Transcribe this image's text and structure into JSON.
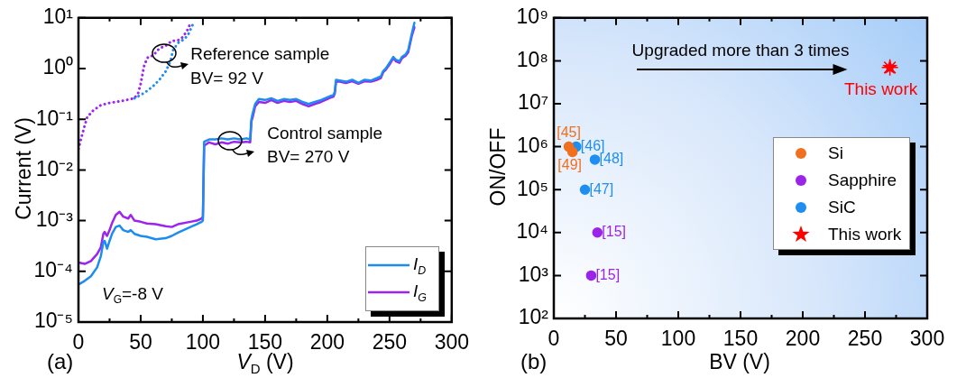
{
  "chart_data": [
    {
      "type": "line",
      "xlabel": "V$_{D}$ (V)",
      "ylabel": "Current (V)",
      "log": "y",
      "grid": false,
      "legend": "bottom right",
      "xlim": [
        0,
        300
      ],
      "ylim": [
        1e-05,
        10
      ],
      "xticks": [
        0,
        {
          "value": 25,
          "label": null
        },
        50,
        {
          "value": 75,
          "label": null
        },
        100,
        {
          "value": 125,
          "label": null
        },
        150,
        {
          "value": 175,
          "label": null
        },
        200,
        {
          "value": 225,
          "label": null
        },
        250,
        {
          "value": 275,
          "label": null
        },
        300
      ],
      "yticks": [
        {
          "value": 1e-05,
          "label": "10⁻⁵"
        },
        {
          "value": 0.0001,
          "label": "10⁻⁴"
        },
        {
          "value": 0.001,
          "label": "10⁻³"
        },
        {
          "value": 0.01,
          "label": "10⁻²"
        },
        {
          "value": 0.1,
          "label": "10⁻¹"
        },
        {
          "value": 1,
          "label": "10⁰"
        },
        {
          "value": 10,
          "label": "10¹"
        }
      ],
      "series": [
        {
          "name": "I$_{D}$",
          "color": "#1c8cf0",
          "x": [
            0,
            5,
            10,
            15,
            18,
            20,
            21,
            23,
            25,
            27,
            30,
            33,
            36,
            40,
            42,
            45,
            50,
            55,
            62,
            70,
            75,
            80,
            90,
            95,
            99,
            100,
            101,
            105,
            110,
            115,
            120,
            125,
            130,
            135,
            138,
            139,
            140,
            142,
            145,
            150,
            155,
            160,
            165,
            170,
            175,
            180,
            185,
            190,
            195,
            200,
            203,
            205,
            206,
            207,
            210,
            215,
            220,
            225,
            230,
            235,
            240,
            243,
            245,
            247,
            250,
            253,
            255,
            258,
            260,
            263,
            265,
            268,
            270
          ],
          "values": [
            5.5e-05,
            6.5e-05,
            8e-05,
            0.00012,
            0.0002,
            0.00038,
            0.0004,
            0.00028,
            0.0004,
            0.00055,
            0.00075,
            0.0008,
            0.00065,
            0.0006,
            0.00065,
            0.00055,
            0.0005,
            0.00048,
            0.00043,
            0.00045,
            0.0005,
            0.00058,
            0.00075,
            0.00085,
            0.00095,
            0.001,
            0.036,
            0.04,
            0.04,
            0.042,
            0.04,
            0.042,
            0.04,
            0.042,
            0.04,
            0.1,
            0.13,
            0.2,
            0.25,
            0.24,
            0.26,
            0.23,
            0.25,
            0.24,
            0.25,
            0.22,
            0.2,
            0.22,
            0.24,
            0.27,
            0.29,
            0.3,
            0.35,
            0.6,
            0.58,
            0.55,
            0.6,
            0.52,
            0.6,
            0.58,
            0.65,
            0.7,
            0.9,
            1,
            1.3,
            1.7,
            1.5,
            1.4,
            1.7,
            1.9,
            2.3,
            5,
            8
          ]
        },
        {
          "name": "I$_{G}$",
          "color": "#9b24f0",
          "x": [
            0,
            5,
            10,
            15,
            18,
            20,
            21,
            23,
            25,
            27,
            30,
            33,
            36,
            40,
            42,
            45,
            50,
            55,
            62,
            70,
            75,
            80,
            90,
            95,
            99,
            100,
            101,
            105,
            110,
            115,
            120,
            125,
            130,
            135,
            138,
            139,
            140,
            142,
            145,
            150,
            155,
            160,
            165,
            170,
            175,
            180,
            185,
            190,
            195,
            200,
            203,
            205,
            206,
            207,
            210,
            215,
            220,
            225,
            230,
            235,
            240,
            243,
            245,
            247,
            250,
            253,
            255,
            258,
            260,
            263,
            265,
            268,
            270
          ],
          "values": [
            0.00015,
            0.00014,
            0.00016,
            0.00022,
            0.0003,
            0.00055,
            0.0006,
            0.0005,
            0.00065,
            0.0009,
            0.0013,
            0.0015,
            0.0012,
            0.0011,
            0.0013,
            0.001,
            0.00095,
            0.00088,
            0.00085,
            0.00078,
            0.00075,
            0.00085,
            0.00095,
            0.001,
            0.0011,
            0.0012,
            0.03,
            0.035,
            0.032,
            0.035,
            0.033,
            0.036,
            0.035,
            0.036,
            0.035,
            0.09,
            0.11,
            0.18,
            0.22,
            0.21,
            0.24,
            0.21,
            0.23,
            0.22,
            0.23,
            0.2,
            0.18,
            0.2,
            0.22,
            0.25,
            0.27,
            0.28,
            0.32,
            0.55,
            0.55,
            0.52,
            0.56,
            0.5,
            0.56,
            0.55,
            0.6,
            0.65,
            0.85,
            0.95,
            1.2,
            1.6,
            1.4,
            1.3,
            1.6,
            1.8,
            2.1,
            4.5,
            6.5
          ]
        },
        {
          "color": "#1c8cf0",
          "line_style": "dotted",
          "x": [
            45,
            50,
            55,
            60,
            65,
            70,
            74,
            76,
            80,
            85,
            88,
            92
          ],
          "values": [
            0.26,
            0.3,
            0.36,
            0.45,
            0.6,
            0.87,
            1.4,
            2.3,
            3.2,
            3.8,
            4.6,
            7.5
          ]
        },
        {
          "color": "#9b24f0",
          "line_style": "dotted",
          "x": [
            0,
            3,
            7,
            12,
            18,
            25,
            35,
            42,
            45,
            48,
            50,
            53,
            56,
            60,
            65,
            70,
            75,
            80,
            84,
            88,
            90
          ],
          "values": [
            0.026,
            0.05,
            0.11,
            0.15,
            0.19,
            0.21,
            0.23,
            0.25,
            0.26,
            0.33,
            0.5,
            1.2,
            1.7,
            1.8,
            2.5,
            2.8,
            3.5,
            3.6,
            4.2,
            6,
            7.8
          ]
        }
      ],
      "annotations": [
        {
          "text": "Reference sample",
          "x": 69,
          "y": 2
        },
        "BV= 92 V",
        {
          "text": "Control sample",
          "x": 122,
          "y": 0.038
        },
        "BV= 270 V",
        "V$_{G}$=-8 V",
        "(a)"
      ]
    },
    {
      "type": "scatter",
      "xlabel": "BV (V)",
      "ylabel": "ON/OFF",
      "log": "y",
      "grid": false,
      "legend": "right",
      "marker": "circle",
      "xlim": [
        0,
        300
      ],
      "ylim": [
        100,
        1000000000
      ],
      "xticks": [
        0,
        {
          "value": 25,
          "label": null
        },
        50,
        {
          "value": 75,
          "label": null
        },
        100,
        {
          "value": 125,
          "label": null
        },
        150,
        {
          "value": 175,
          "label": null
        },
        200,
        {
          "value": 225,
          "label": null
        },
        250,
        {
          "value": 275,
          "label": null
        },
        300
      ],
      "yticks": [
        {
          "value": 100,
          "label": "10²"
        },
        {
          "value": 1000,
          "label": "10³"
        },
        {
          "value": 10000,
          "label": "10⁴"
        },
        {
          "value": 100000,
          "label": "10⁵"
        },
        {
          "value": 1000000,
          "label": "10⁶"
        },
        {
          "value": 10000000,
          "label": "10⁷"
        },
        {
          "value": 100000000,
          "label": "10⁸"
        },
        {
          "value": 1000000000,
          "label": "10⁹"
        }
      ],
      "series": [
        {
          "name": "Si",
          "color": "#f07020",
          "x": [
            12,
            15
          ],
          "values": [
            1000000,
            750000
          ]
        },
        {
          "name": "Sapphire",
          "color": "#9b24e8",
          "x": [
            35,
            30
          ],
          "values": [
            10000,
            1000
          ]
        },
        {
          "name": "SiC",
          "color": "#1e8ef0",
          "x": [
            18,
            33,
            25
          ],
          "values": [
            1000000,
            500000,
            100000
          ]
        },
        {
          "name": "This work",
          "color": "#ff0000",
          "marker": "star",
          "x": [
            270
          ],
          "values": [
            70000000
          ]
        }
      ],
      "annotations": [
        "Upgraded more than 3 times",
        {
          "text": "[45]",
          "x": 12,
          "y": 1000000
        },
        {
          "text": "[46]",
          "x": 18,
          "y": 1000000
        },
        {
          "text": "[49]",
          "x": 15,
          "y": 750000
        },
        {
          "text": "[48]",
          "x": 33,
          "y": 500000
        },
        {
          "text": "[47]",
          "x": 25,
          "y": 100000
        },
        {
          "text": "[15]",
          "x": 35,
          "y": 10000
        },
        {
          "text": "[15]",
          "x": 30,
          "y": 1000
        },
        {
          "text": "This work",
          "x": 270,
          "y": 70000000
        },
        "(b)"
      ]
    }
  ]
}
